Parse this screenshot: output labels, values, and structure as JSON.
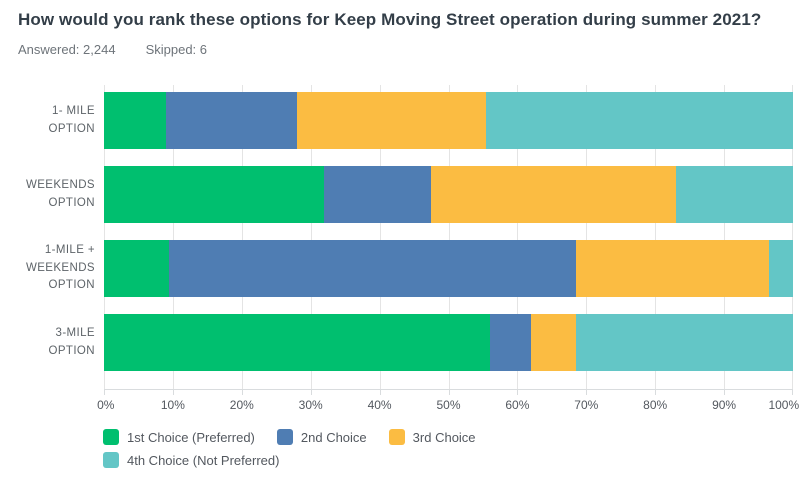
{
  "header": {
    "title": "How would you rank these options for Keep Moving Street operation during summer 2021?",
    "answered_label": "Answered: 2,244",
    "skipped_label": "Skipped: 6"
  },
  "colors": {
    "series_green": "#00BF6F",
    "series_blue": "#4F7DB3",
    "series_yellow": "#FBBC42",
    "series_teal": "#63C6C6",
    "title_text": "#333E48",
    "meta_text": "#6E747A",
    "axis_text": "#53585F",
    "category_text": "#5D6368",
    "gridline": "#E4E4E4",
    "axis_line": "#D9DCDE"
  },
  "chart_data": {
    "type": "bar",
    "orientation": "horizontal_stacked",
    "title": "How would you rank these options for Keep Moving Street operation during summer 2021?",
    "categories": [
      "1- MILE OPTION",
      "WEEKENDS OPTION",
      "1-MILE + WEEKENDS OPTION",
      "3-MILE OPTION"
    ],
    "category_display": [
      "1- MILE\nOPTION",
      "WEEKENDS\nOPTION",
      "1-MILE +\nWEEKENDS\nOPTION",
      "3-MILE\nOPTION"
    ],
    "series": [
      {
        "name": "1st Choice (Preferred)",
        "color": "#00BF6F",
        "values": [
          9,
          32,
          9.5,
          56
        ]
      },
      {
        "name": "2nd Choice",
        "color": "#4F7DB3",
        "values": [
          19,
          15.5,
          59,
          6
        ]
      },
      {
        "name": "3rd Choice",
        "color": "#FBBC42",
        "values": [
          27.5,
          35.5,
          28,
          6.5
        ]
      },
      {
        "name": "4th Choice (Not Preferred)",
        "color": "#63C6C6",
        "values": [
          44.5,
          17,
          3.5,
          31.5
        ]
      }
    ],
    "x_ticks": [
      "0%",
      "10%",
      "20%",
      "30%",
      "40%",
      "50%",
      "60%",
      "70%",
      "80%",
      "90%",
      "100%"
    ],
    "xlim": [
      0,
      100
    ],
    "unit": "percent",
    "grid": true,
    "legend_position": "bottom"
  }
}
